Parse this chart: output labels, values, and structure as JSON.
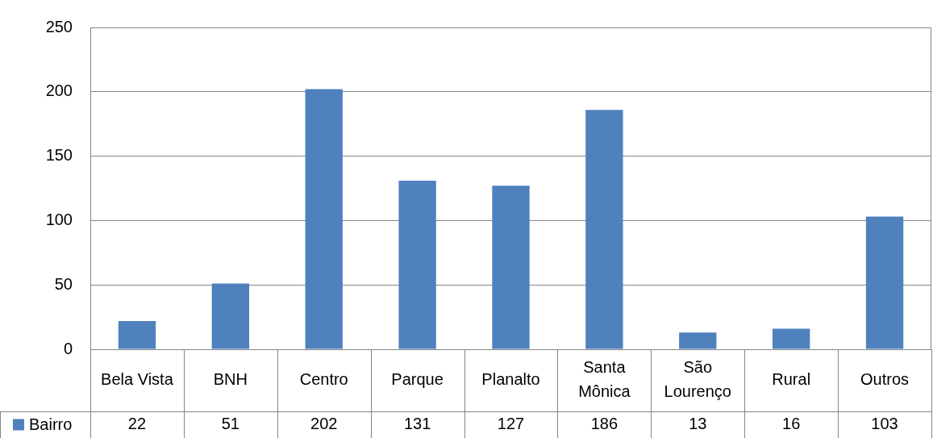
{
  "chart_data": {
    "type": "bar",
    "categories": [
      "Bela Vista",
      "BNH",
      "Centro",
      "Parque",
      "Planalto",
      "Santa Mônica",
      "São Lourenço",
      "Rural",
      "Outros"
    ],
    "series": [
      {
        "name": "Bairro",
        "color": "#4f81bd",
        "values": [
          22,
          51,
          202,
          131,
          127,
          186,
          13,
          16,
          103
        ]
      }
    ],
    "ylim": [
      0,
      250
    ],
    "yticks": [
      0,
      50,
      100,
      150,
      200,
      250
    ],
    "grid": "y",
    "legend": "bottom left",
    "data_labels": true
  }
}
